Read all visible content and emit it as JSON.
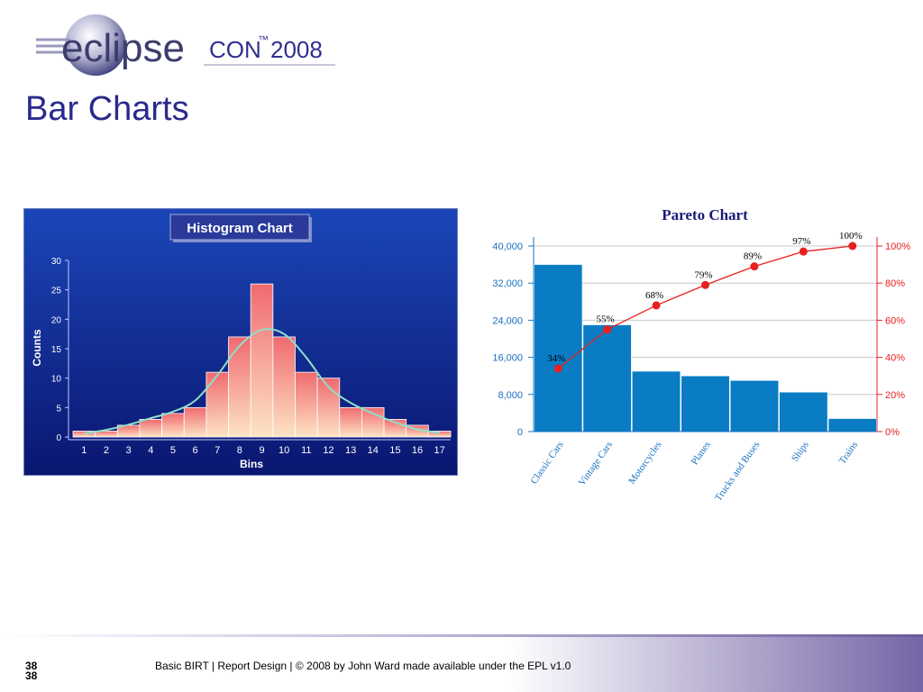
{
  "header": {
    "logo_text_eclipse": "eclipse",
    "logo_text_con": "CON",
    "logo_text_tm": "™",
    "logo_text_year": "2008",
    "slide_title": "Bar Charts"
  },
  "footer": {
    "page_number": "38",
    "text": "Basic BIRT  |  Report Design  |  © 2008 by John Ward made available under the EPL v1.0"
  },
  "colors": {
    "title": "#2a2a8c",
    "histogram_bg_top": "#1a3aa8",
    "histogram_bg_bottom": "#0a1a7a",
    "histogram_bar_top": "#f07070",
    "histogram_bar_bottom": "#fde0c0",
    "histogram_curve": "#8ee0c8",
    "pareto_bar": "#0a7cc4",
    "pareto_line": "#e82020",
    "pareto_title": "#1a1a7a",
    "axis_left": "#1a70c0",
    "axis_right": "#e82020",
    "footer_band": "#7a6aa8"
  },
  "chart_data": [
    {
      "type": "bar",
      "title": "Histogram Chart",
      "xlabel": "Bins",
      "ylabel": "Counts",
      "categories": [
        "1",
        "2",
        "3",
        "4",
        "5",
        "6",
        "7",
        "8",
        "9",
        "10",
        "11",
        "12",
        "13",
        "14",
        "15",
        "16",
        "17"
      ],
      "values": [
        1,
        1,
        2,
        3,
        4,
        5,
        11,
        17,
        26,
        17,
        11,
        10,
        5,
        5,
        3,
        2,
        1
      ],
      "curve": [
        0.6,
        1.2,
        2.1,
        3.2,
        4.3,
        6.2,
        10.5,
        15.5,
        18.2,
        17.5,
        13.5,
        8.5,
        5.8,
        4.0,
        2.5,
        1.3,
        0.7
      ],
      "ylim": [
        0,
        30
      ],
      "yticks": [
        "0",
        "5",
        "10",
        "15",
        "20",
        "25",
        "30"
      ],
      "grid": false
    },
    {
      "type": "bar",
      "title": "Pareto Chart",
      "categories": [
        "Classic Cars",
        "Vintage Cars",
        "Motorcycles",
        "Planes",
        "Trucks and Buses",
        "Ships",
        "Trains"
      ],
      "values": [
        36000,
        23000,
        13000,
        12000,
        11000,
        8500,
        2800
      ],
      "cumulative_pct": [
        34,
        55,
        68,
        79,
        89,
        97,
        100
      ],
      "cumulative_labels": [
        "34%",
        "55%",
        "68%",
        "79%",
        "89%",
        "97%",
        "100%"
      ],
      "ylim": [
        0,
        40000
      ],
      "yticks": [
        "0",
        "8,000",
        "16,000",
        "24,000",
        "32,000",
        "40,000"
      ],
      "y2lim": [
        0,
        100
      ],
      "y2ticks": [
        "0%",
        "20%",
        "40%",
        "60%",
        "80%",
        "100%"
      ],
      "grid": true
    }
  ]
}
